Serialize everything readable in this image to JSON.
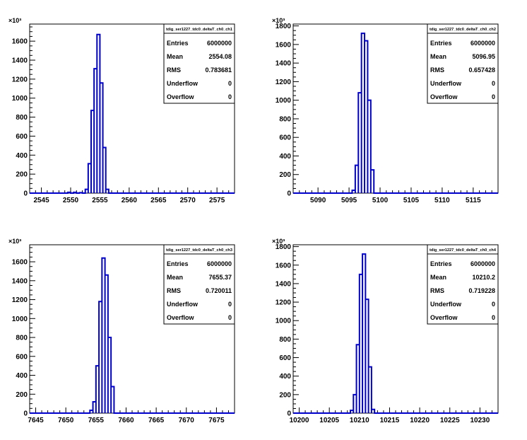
{
  "chart_data": [
    {
      "type": "bar",
      "title": "tdig_ser1227_tdc0_deltaT_ch0_ch1",
      "xlim": [
        2543,
        2578
      ],
      "ylim": [
        0,
        1780000
      ],
      "y_exponent_label": "×10³",
      "x_ticks": [
        2545,
        2550,
        2555,
        2560,
        2565,
        2570,
        2575
      ],
      "y_ticks": [
        0,
        200000,
        400000,
        600000,
        800000,
        1000000,
        1200000,
        1400000,
        1600000
      ],
      "y_tick_labels": [
        "0",
        "200",
        "400",
        "600",
        "800",
        "1000",
        "1200",
        "1400",
        "1600"
      ],
      "x": [
        2549.5,
        2550.5,
        2551.5,
        2552.5,
        2553.0,
        2553.5,
        2554.0,
        2554.5,
        2555.0,
        2555.5,
        2556.0
      ],
      "values": [
        8000,
        8000,
        5000,
        40000,
        310000,
        870000,
        1310000,
        1670000,
        1160000,
        480000,
        40000
      ],
      "bin_width": 0.5,
      "stats": [
        {
          "label": "Entries",
          "value": "6000000"
        },
        {
          "label": "Mean",
          "value": "2554.08"
        },
        {
          "label": "RMS",
          "value": "0.783681"
        },
        {
          "label": "Underflow",
          "value": "0"
        },
        {
          "label": "Overflow",
          "value": "0"
        }
      ]
    },
    {
      "type": "bar",
      "title": "tdig_ser1227_tdc0_deltaT_ch0_ch2",
      "xlim": [
        5086,
        5119
      ],
      "ylim": [
        0,
        1820000
      ],
      "y_exponent_label": "×10³",
      "x_ticks": [
        5090,
        5095,
        5100,
        5105,
        5110,
        5115
      ],
      "y_ticks": [
        0,
        200000,
        400000,
        600000,
        800000,
        1000000,
        1200000,
        1400000,
        1600000,
        1800000
      ],
      "y_tick_labels": [
        "0",
        "200",
        "400",
        "600",
        "800",
        "1000",
        "1200",
        "1400",
        "1600",
        "1800"
      ],
      "x": [
        5095.5,
        5096.0,
        5096.5,
        5097.0,
        5097.5,
        5098.0,
        5098.5
      ],
      "values": [
        30000,
        300000,
        1080000,
        1720000,
        1640000,
        1000000,
        250000
      ],
      "bin_width": 0.5,
      "stats": [
        {
          "label": "Entries",
          "value": "6000000"
        },
        {
          "label": "Mean",
          "value": "5096.95"
        },
        {
          "label": "RMS",
          "value": "0.657428"
        },
        {
          "label": "Underflow",
          "value": "0"
        },
        {
          "label": "Overflow",
          "value": "0"
        }
      ]
    },
    {
      "type": "bar",
      "title": "tdig_ser1227_tdc0_deltaT_ch0_ch3",
      "xlim": [
        7644,
        7678
      ],
      "ylim": [
        0,
        1780000
      ],
      "y_exponent_label": "×10³",
      "x_ticks": [
        7645,
        7650,
        7655,
        7660,
        7665,
        7670,
        7675
      ],
      "y_ticks": [
        0,
        200000,
        400000,
        600000,
        800000,
        1000000,
        1200000,
        1400000,
        1600000
      ],
      "y_tick_labels": [
        "0",
        "200",
        "400",
        "600",
        "800",
        "1000",
        "1200",
        "1400",
        "1600"
      ],
      "x": [
        7654.0,
        7654.5,
        7655.0,
        7655.5,
        7656.0,
        7656.5,
        7657.0
      ],
      "values": [
        30000,
        120000,
        500000,
        1180000,
        1640000,
        1460000,
        800000
      ],
      "extra": [],
      "x_tail": [
        7657.5
      ],
      "values_tail": [
        280000
      ],
      "bin_width": 0.5,
      "stats": [
        {
          "label": "Entries",
          "value": "6000000"
        },
        {
          "label": "Mean",
          "value": "7655.37"
        },
        {
          "label": "RMS",
          "value": "0.720011"
        },
        {
          "label": "Underflow",
          "value": "0"
        },
        {
          "label": "Overflow",
          "value": "0"
        }
      ]
    },
    {
      "type": "bar",
      "title": "tdig_ser1227_tdc0_deltaT_ch0_ch4",
      "xlim": [
        10199,
        10233
      ],
      "ylim": [
        0,
        1820000
      ],
      "y_exponent_label": "×10³",
      "x_ticks": [
        10200,
        10205,
        10210,
        10215,
        10220,
        10225,
        10230
      ],
      "y_ticks": [
        0,
        200000,
        400000,
        600000,
        800000,
        1000000,
        1200000,
        1400000,
        1600000,
        1800000
      ],
      "y_tick_labels": [
        "0",
        "200",
        "400",
        "600",
        "800",
        "1000",
        "1200",
        "1400",
        "1600",
        "1800"
      ],
      "x": [
        10208.5,
        10209.0,
        10209.5,
        10210.0,
        10210.5,
        10211.0,
        10211.5
      ],
      "values": [
        30000,
        200000,
        740000,
        1500000,
        1720000,
        1230000,
        500000
      ],
      "x_tail": [
        10212.0
      ],
      "values_tail": [
        40000
      ],
      "bin_width": 0.5,
      "stats": [
        {
          "label": "Entries",
          "value": "6000000"
        },
        {
          "label": "Mean",
          "value": "10210.2"
        },
        {
          "label": "RMS",
          "value": "0.719228"
        },
        {
          "label": "Underflow",
          "value": "0"
        },
        {
          "label": "Overflow",
          "value": "0"
        }
      ]
    }
  ],
  "colors": {
    "line": "#0000cc",
    "axis": "#000000",
    "background": "#ffffff"
  }
}
